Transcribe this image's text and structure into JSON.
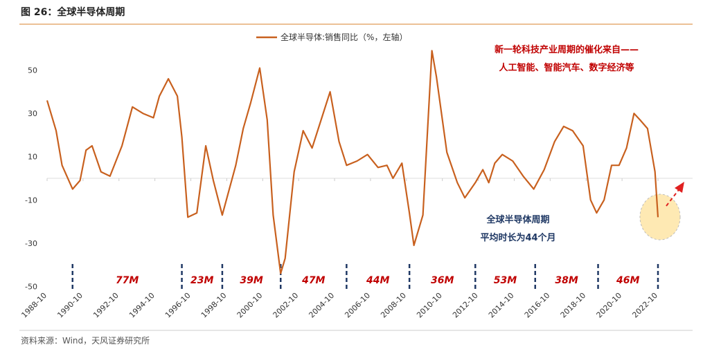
{
  "figure_title": "图 26：全球半导体周期",
  "source": "资料来源：Wind，天风证券研究所",
  "chart_data": {
    "type": "line",
    "series": [
      {
        "name": "全球半导体:销售同比（%，左轴）",
        "color": "#c8601e",
        "x": [
          "1988-10",
          "1989-04",
          "1989-08",
          "1990-03",
          "1990-08",
          "1990-12",
          "1991-04",
          "1991-10",
          "1992-04",
          "1992-12",
          "1993-07",
          "1994-02",
          "1994-09",
          "1995-01",
          "1995-07",
          "1996-01",
          "1996-04",
          "1996-08",
          "1997-02",
          "1997-08",
          "1998-01",
          "1998-07",
          "1999-04",
          "1999-09",
          "2000-02",
          "2000-08",
          "2001-01",
          "2001-05",
          "2001-10",
          "2002-01",
          "2002-07",
          "2003-01",
          "2003-07",
          "2004-01",
          "2004-07",
          "2005-01",
          "2005-06",
          "2006-01",
          "2006-08",
          "2007-03",
          "2007-09",
          "2008-01",
          "2008-07",
          "2008-12",
          "2009-03",
          "2009-09",
          "2010-03",
          "2010-06",
          "2011-01",
          "2011-08",
          "2012-01",
          "2012-08",
          "2013-01",
          "2013-05",
          "2013-09",
          "2014-02",
          "2014-09",
          "2015-04",
          "2015-11",
          "2016-06",
          "2017-01",
          "2017-07",
          "2018-01",
          "2018-08",
          "2019-01",
          "2019-05",
          "2019-10",
          "2020-03",
          "2020-08",
          "2021-01",
          "2021-06",
          "2021-10",
          "2022-03",
          "2022-08",
          "2022-10"
        ],
        "values": [
          36,
          22,
          6,
          -5,
          -1,
          13,
          15,
          3,
          1,
          15,
          33,
          30,
          28,
          38,
          46,
          38,
          19,
          -18,
          -16,
          15,
          -1,
          -17,
          6,
          23,
          35,
          51,
          27,
          -17,
          -44,
          -37,
          3,
          22,
          14,
          27,
          40,
          17,
          6,
          8,
          11,
          5,
          6,
          0,
          7,
          -16,
          -31,
          -17,
          59,
          47,
          12,
          -2,
          -9,
          -2,
          4,
          -2,
          7,
          11,
          8,
          1,
          -5,
          4,
          17,
          24,
          22,
          15,
          -10,
          -16,
          -10,
          6,
          6,
          14,
          30,
          27,
          23,
          3,
          -18
        ]
      }
    ],
    "xlim": [
      "1988-10",
      "2022-10"
    ],
    "xticks": [
      "1988-10",
      "1990-10",
      "1992-10",
      "1994-10",
      "1996-10",
      "1998-10",
      "2000-10",
      "2002-10",
      "2004-10",
      "2006-10",
      "2008-10",
      "2010-10",
      "2012-10",
      "2014-10",
      "2016-10",
      "2018-10",
      "2020-10",
      "2022-10"
    ],
    "ylim": [
      -55,
      65
    ],
    "yticks": [
      -50,
      -30,
      -10,
      10,
      30,
      50
    ],
    "cycle_bounds": [
      "1990-03",
      "1996-04",
      "1998-07",
      "2001-10",
      "2005-06",
      "2008-12",
      "2012-08",
      "2015-12",
      "2019-06",
      "2022-10"
    ],
    "cycle_labels": [
      "77M",
      "23M",
      "39M",
      "47M",
      "44M",
      "36M",
      "53M",
      "38M",
      "46M"
    ],
    "annotation_red": [
      "新一轮科技产业周期的催化来自——",
      "人工智能、智能汽车、数字经济等"
    ],
    "annotation_blue": [
      "全球半导体周期",
      "平均时长为44个月"
    ]
  }
}
